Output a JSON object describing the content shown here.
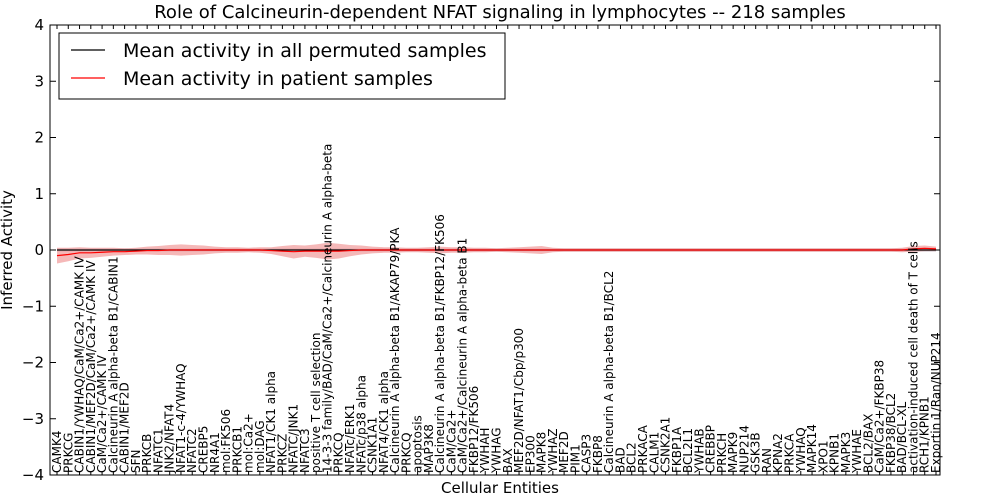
{
  "chart_data": {
    "type": "line",
    "title": "Role of Calcineurin-dependent NFAT signaling in lymphocytes -- 218 samples",
    "xlabel": "Cellular Entities",
    "ylabel": "Inferred Activity",
    "ylim": [
      -4,
      4
    ],
    "yticks": [
      -4,
      -3,
      -2,
      -1,
      0,
      1,
      2,
      3,
      4
    ],
    "ytick_labels": [
      "−4",
      "−3",
      "−2",
      "−1",
      "0",
      "1",
      "2",
      "3",
      "4"
    ],
    "grid": false,
    "legend_position": "upper-left",
    "colors": {
      "permuted": "#000000",
      "patient": "#ff0000",
      "patient_band": "#f2a0a0",
      "permuted_band": "#c8c8d2"
    },
    "categories": [
      "CAMK4",
      "PRKCG",
      "CABIN1/YWHAQ/CaM/Ca2+/CAMK IV",
      "CABIN1/MEF2D/CaM/Ca2+/CAMK IV",
      "CaM/Ca2+/CAMK IV",
      "Calcineurin A alpha-beta B1/CABIN1",
      "CABIN1/MEF2D",
      "SFN",
      "PRKCB",
      "NFATC1",
      "JNK2/NFAT4",
      "NFAT1-c-4/YWHAQ",
      "NFATC2",
      "CREBP5",
      "NR4A1",
      "mol:FK506",
      "PRKCB1",
      "mol:Ca2+",
      "mol:DAG",
      "NFAT1/CK1 alpha",
      "PRKCZ",
      "NFATC/JNK1",
      "NFATC3",
      "positive T cell selection",
      "14-3-3 family/BAD/CaM/Ca2+/Calcineurin A alpha-beta",
      "PRKCQ",
      "NFATc/ERK1",
      "NFATc/p38 alpha",
      "CSNK1A1",
      "NFAT4/CK1 alpha",
      "Calcineurin A alpha-beta B1/AKAP79/PKA",
      "PRKCQ",
      "apoptosis",
      "MAP3K8",
      "Calcineurin A alpha-beta B1/FKBP12/FK506",
      "CaM/Ca2+",
      "CaM/Ca2+/Calcineurin A alpha-beta B1",
      "FKBP12/FK506",
      "YWHAH",
      "YWHAG",
      "BAX",
      "MEF2D/NFAT1/Cbp/p300",
      "EP300",
      "MAPK8",
      "YWHAZ",
      "MEF2D",
      "PIM1",
      "CASP3",
      "FKBP8",
      "Calcineurin A alpha-beta B1/BCL2",
      "BAD",
      "BCL2",
      "PRKACA",
      "CALM1",
      "CSNK2A1",
      "FKBP1A",
      "BCL2L1",
      "YWHAB",
      "CREBBP",
      "PRKCH",
      "MAPK9",
      "NUP214",
      "GSK3B",
      "RAN",
      "KPNA2",
      "PRKCA",
      "YWHAQ",
      "MAPK14",
      "XPO1",
      "KPNB1",
      "MAPK3",
      "YWHAE",
      "BCL2/BAX",
      "CaM/Ca2+/FKBP38",
      "FKBP38/BCL2",
      "BAD/BCL-XL",
      "activation-induced cell death of T cells",
      "RCH1/KPNB1",
      "Exportin 1/Ran/NUP214"
    ],
    "series": [
      {
        "name": "Mean activity in all permuted samples",
        "values": [
          0,
          0,
          0,
          0,
          0,
          0,
          0,
          0,
          0,
          0,
          0,
          0,
          0,
          0,
          0,
          0,
          0,
          0,
          0,
          0,
          0,
          0,
          0,
          0,
          0,
          0,
          0,
          0,
          0,
          0,
          0,
          0,
          0,
          0,
          0,
          0,
          0,
          0,
          0,
          0,
          0,
          0,
          0,
          0,
          0,
          0,
          0,
          0,
          0,
          0,
          0,
          0,
          0,
          0,
          0,
          0,
          0,
          0,
          0,
          0,
          0,
          0,
          0,
          0,
          0,
          0,
          0,
          0,
          0,
          0,
          0,
          0,
          0,
          0,
          0,
          0,
          0,
          0,
          0
        ],
        "band": [
          0.03,
          0.03,
          0.03,
          0.03,
          0.03,
          0.03,
          0.03,
          0.03,
          0.03,
          0.03,
          0.03,
          0.03,
          0.03,
          0.03,
          0.03,
          0.03,
          0.03,
          0.03,
          0.03,
          0.03,
          0.03,
          0.03,
          0.03,
          0.03,
          0.03,
          0.03,
          0.03,
          0.03,
          0.03,
          0.03,
          0.03,
          0.03,
          0.03,
          0.03,
          0.03,
          0.03,
          0.03,
          0.03,
          0.03,
          0.03,
          0.03,
          0.03,
          0.03,
          0.03,
          0.03,
          0.03,
          0.03,
          0.03,
          0.03,
          0.03,
          0.03,
          0.03,
          0.03,
          0.03,
          0.03,
          0.03,
          0.03,
          0.03,
          0.03,
          0.03,
          0.03,
          0.03,
          0.03,
          0.03,
          0.03,
          0.03,
          0.03,
          0.03,
          0.03,
          0.03,
          0.03,
          0.03,
          0.03,
          0.03,
          0.03,
          0.03,
          0.03,
          0.03,
          0.03
        ]
      },
      {
        "name": "Mean activity in patient samples",
        "values": [
          -0.1,
          -0.08,
          -0.05,
          -0.05,
          -0.04,
          -0.03,
          -0.03,
          -0.02,
          -0.01,
          -0.01,
          0,
          0,
          0,
          0,
          0,
          0,
          0,
          0,
          0,
          -0.01,
          -0.02,
          -0.03,
          -0.02,
          -0.02,
          -0.02,
          -0.02,
          -0.01,
          0,
          0,
          0,
          0,
          0,
          0,
          0,
          0,
          0,
          0,
          0,
          0,
          0,
          0,
          0,
          0,
          0,
          0,
          0,
          0,
          0,
          0,
          0,
          0,
          0,
          0,
          0,
          0,
          0,
          0,
          0,
          0,
          0,
          0,
          0,
          0,
          0,
          0,
          0,
          0,
          0,
          0,
          0,
          0,
          0,
          0,
          0,
          0,
          0,
          0.02,
          0.03,
          0.02
        ],
        "band": [
          0.14,
          0.12,
          0.1,
          0.09,
          0.08,
          0.07,
          0.06,
          0.06,
          0.07,
          0.08,
          0.09,
          0.1,
          0.09,
          0.08,
          0.06,
          0.05,
          0.05,
          0.04,
          0.05,
          0.06,
          0.09,
          0.12,
          0.1,
          0.12,
          0.15,
          0.13,
          0.1,
          0.08,
          0.06,
          0.05,
          0.05,
          0.04,
          0.04,
          0.05,
          0.06,
          0.05,
          0.05,
          0.04,
          0.04,
          0.03,
          0.04,
          0.05,
          0.06,
          0.07,
          0.04,
          0.03,
          0.03,
          0.03,
          0.03,
          0.03,
          0.03,
          0.03,
          0.03,
          0.03,
          0.03,
          0.03,
          0.03,
          0.03,
          0.03,
          0.03,
          0.03,
          0.03,
          0.03,
          0.03,
          0.03,
          0.03,
          0.03,
          0.03,
          0.03,
          0.03,
          0.03,
          0.03,
          0.03,
          0.03,
          0.03,
          0.04,
          0.05,
          0.05,
          0.04
        ]
      }
    ]
  }
}
